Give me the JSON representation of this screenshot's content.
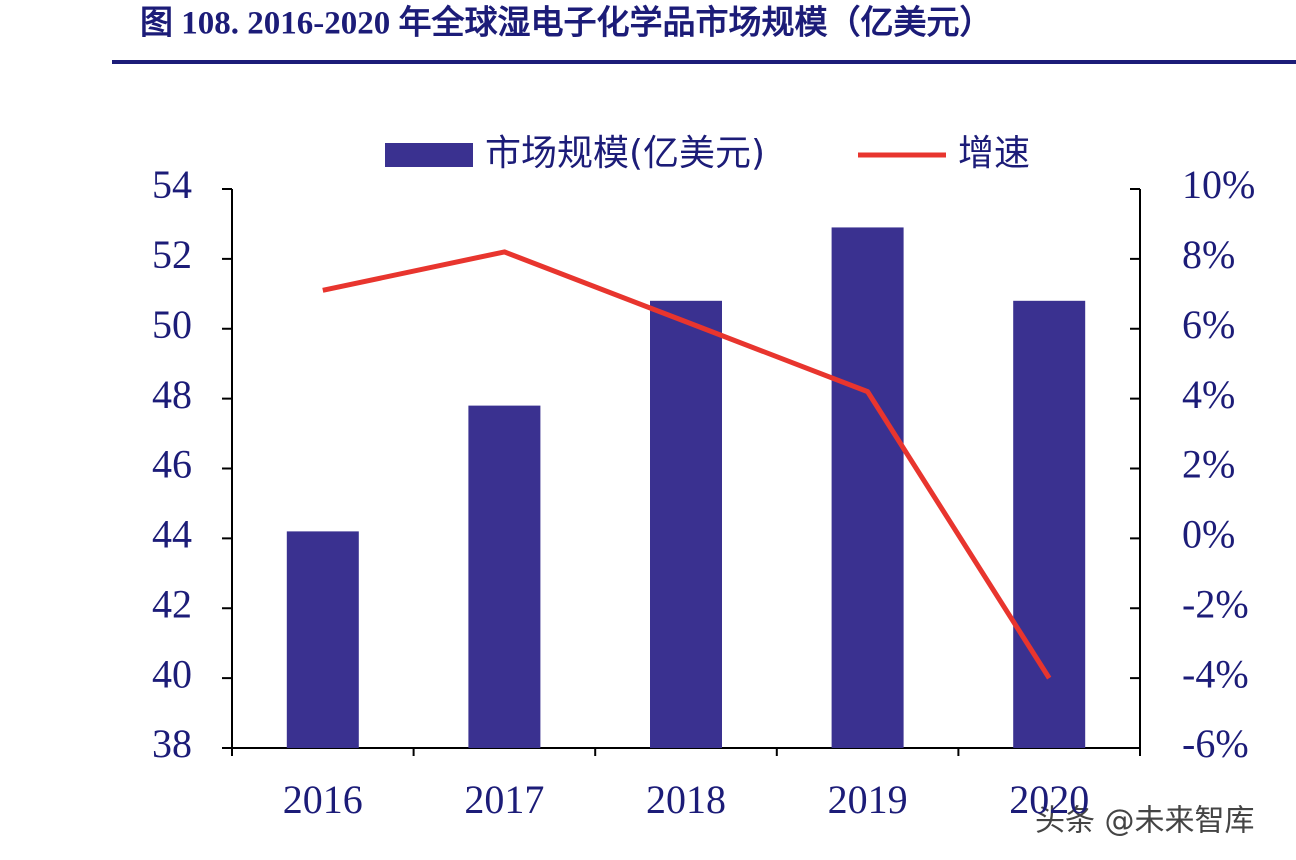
{
  "title": "图 108. 2016-2020 年全球湿电子化学品市场规模（亿美元）",
  "watermark": "头条 @未来智库",
  "chart_data": {
    "type": "bar-line",
    "categories": [
      "2016",
      "2017",
      "2018",
      "2019",
      "2020"
    ],
    "series": [
      {
        "name": "市场规模(亿美元)",
        "type": "bar",
        "color": "#3a3190",
        "values": [
          44.2,
          47.8,
          50.8,
          52.9,
          50.8
        ]
      },
      {
        "name": "增速",
        "type": "line",
        "axis": "y2",
        "color": "#e8352e",
        "values": [
          7.1,
          8.2,
          6.2,
          4.2,
          -4.0
        ]
      }
    ],
    "ylim": [
      38,
      54
    ],
    "yticks": [
      38,
      40,
      42,
      44,
      46,
      48,
      50,
      52,
      54
    ],
    "y2lim": [
      -6,
      10
    ],
    "y2ticks": [
      {
        "value": -6,
        "label": "-6%"
      },
      {
        "value": -4,
        "label": "-4%"
      },
      {
        "value": -2,
        "label": "-2%"
      },
      {
        "value": 0,
        "label": "0%"
      },
      {
        "value": 2,
        "label": "2%"
      },
      {
        "value": 4,
        "label": "4%"
      },
      {
        "value": 6,
        "label": "6%"
      },
      {
        "value": 8,
        "label": "8%"
      },
      {
        "value": 10,
        "label": "10%"
      }
    ],
    "legend": "top"
  }
}
